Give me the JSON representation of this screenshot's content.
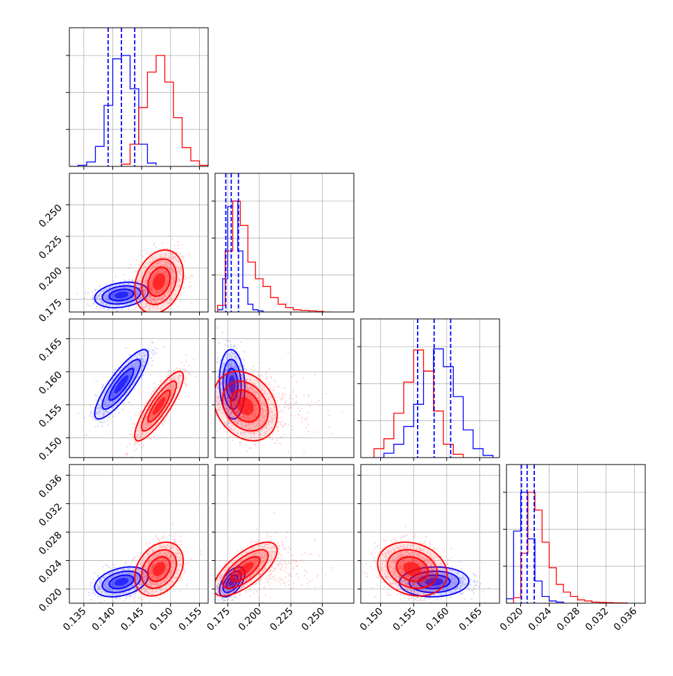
{
  "chart_data": {
    "type": "corner",
    "colors": {
      "model_a": "#0000ff",
      "model_b": "#ff0000",
      "grid": "#b0b0b0",
      "axes": "#000000"
    },
    "grid": true,
    "variables": [
      {
        "range": [
          0.1325,
          0.1565
        ],
        "ticks": [
          "0.135",
          "0.140",
          "0.145",
          "0.150",
          "0.155"
        ]
      },
      {
        "range": [
          0.165,
          0.275
        ],
        "ticks": [
          "0.175",
          "0.200",
          "0.225",
          "0.250"
        ]
      },
      {
        "range": [
          0.147,
          0.168
        ],
        "ticks": [
          "0.150",
          "0.155",
          "0.160",
          "0.165"
        ]
      },
      {
        "range": [
          0.018,
          0.0375
        ],
        "ticks": [
          "0.020",
          "0.024",
          "0.028",
          "0.032",
          "0.036"
        ]
      }
    ],
    "blue_quantiles": [
      [
        0.1392,
        0.1415,
        0.1438
      ],
      [
        0.1735,
        0.1778,
        0.1835
      ],
      [
        0.1556,
        0.1581,
        0.1606
      ],
      [
        0.0201,
        0.0209,
        0.0219
      ]
    ],
    "series": [
      {
        "color": "blue",
        "means": [
          0.1415,
          0.1785,
          0.1581,
          0.021
        ],
        "sds": [
          0.0022,
          0.0048,
          0.0025,
          0.001
        ],
        "corr": [
          [
            1,
            0.25,
            0.85,
            0.35
          ],
          [
            0.25,
            1,
            -0.1,
            0.55
          ],
          [
            0.85,
            -0.1,
            1,
            0.05
          ],
          [
            0.35,
            0.55,
            0.05,
            1
          ]
        ],
        "hist": [
          [
            0.1325,
            0.134,
            0.1355,
            0.137,
            0.1385,
            0.14,
            0.1415,
            0.143,
            0.1445,
            0.146,
            0.1475
          ],
          [
            0.0,
            0.01,
            0.04,
            0.18,
            0.55,
            0.97,
            1.0,
            0.7,
            0.2,
            0.03,
            0.01
          ],
          [
            0.167,
            0.171,
            0.175,
            0.179,
            0.183,
            0.187,
            0.191,
            0.195,
            0.199,
            0.203
          ],
          [
            0.02,
            0.3,
            0.95,
            1.0,
            0.55,
            0.22,
            0.07,
            0.02,
            0.01
          ],
          [
            0.149,
            0.1505,
            0.152,
            0.1535,
            0.155,
            0.1565,
            0.158,
            0.1595,
            0.161,
            0.1625,
            0.164,
            0.1655,
            0.167
          ],
          [
            0.0,
            0.04,
            0.12,
            0.28,
            0.48,
            0.78,
            0.98,
            0.82,
            0.55,
            0.25,
            0.08,
            0.02
          ],
          [
            0.018,
            0.019,
            0.02,
            0.021,
            0.022,
            0.023,
            0.024,
            0.025,
            0.026
          ],
          [
            0.04,
            0.65,
            1.0,
            0.58,
            0.2,
            0.06,
            0.02,
            0.01
          ]
        ]
      },
      {
        "color": "red",
        "means": [
          0.148,
          0.189,
          0.1548,
          0.0228
        ],
        "sds": [
          0.002,
          0.012,
          0.0025,
          0.0018
        ],
        "corr": [
          [
            1,
            0.25,
            0.85,
            0.3
          ],
          [
            0.25,
            1,
            -0.25,
            0.7
          ],
          [
            0.85,
            -0.25,
            1,
            -0.2
          ],
          [
            0.3,
            0.7,
            -0.2,
            1
          ]
        ],
        "hist": [
          [
            0.1415,
            0.143,
            0.1445,
            0.146,
            0.1475,
            0.149,
            0.1505,
            0.152,
            0.1535,
            0.155,
            0.1565
          ],
          [
            0.02,
            0.2,
            0.53,
            0.85,
            1.0,
            0.76,
            0.44,
            0.17,
            0.05,
            0.01
          ],
          [
            0.167,
            0.173,
            0.179,
            0.185,
            0.191,
            0.197,
            0.203,
            0.209,
            0.215,
            0.221,
            0.227,
            0.233,
            0.239,
            0.245,
            0.251,
            0.257
          ],
          [
            0.06,
            0.55,
            1.0,
            0.78,
            0.45,
            0.3,
            0.23,
            0.13,
            0.07,
            0.04,
            0.02,
            0.015,
            0.01,
            0.005,
            0.0
          ],
          [
            0.149,
            0.1505,
            0.152,
            0.1535,
            0.155,
            0.1565,
            0.158,
            0.1595,
            0.161,
            0.1625
          ],
          [
            0.08,
            0.17,
            0.4,
            0.68,
            0.97,
            0.78,
            0.42,
            0.12,
            0.03
          ],
          [
            0.018,
            0.019,
            0.02,
            0.021,
            0.022,
            0.023,
            0.024,
            0.025,
            0.026,
            0.027,
            0.028,
            0.029,
            0.03,
            0.031,
            0.032,
            0.033,
            0.034,
            0.035
          ],
          [
            0.0,
            0.05,
            0.45,
            1.0,
            0.84,
            0.55,
            0.32,
            0.17,
            0.1,
            0.06,
            0.03,
            0.02,
            0.01,
            0.008,
            0.005,
            0.003,
            0.002
          ]
        ]
      }
    ]
  }
}
